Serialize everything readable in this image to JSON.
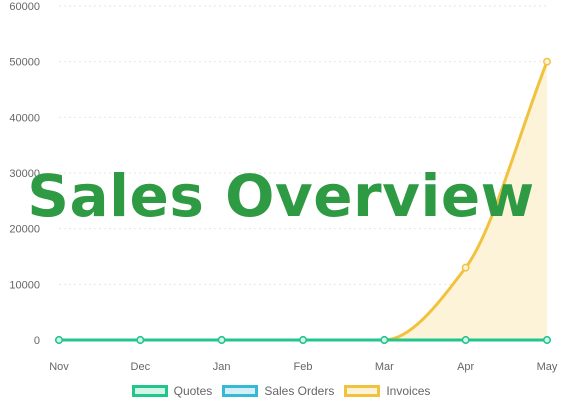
{
  "title": "Sales Overview",
  "chart_data": {
    "type": "line",
    "categories": [
      "Nov",
      "Dec",
      "Jan",
      "Feb",
      "Mar",
      "Apr",
      "May"
    ],
    "series": [
      {
        "name": "Quotes",
        "values": [
          0,
          0,
          0,
          0,
          0,
          0,
          0
        ],
        "color": "#22c58b",
        "fill": "#d2f5e8"
      },
      {
        "name": "Sales Orders",
        "values": [
          0,
          0,
          0,
          0,
          0,
          0,
          0
        ],
        "color": "#36b9d4",
        "fill": "#d4f0f7"
      },
      {
        "name": "Invoices",
        "values": [
          0,
          0,
          0,
          0,
          0,
          13000,
          50000
        ],
        "color": "#f1c23e",
        "fill": "#fdf3d9"
      }
    ],
    "y_ticks": [
      0,
      10000,
      20000,
      30000,
      40000,
      50000,
      60000
    ],
    "ylim": [
      0,
      60000
    ],
    "xlabel": "",
    "ylabel": "",
    "grid": true,
    "legend_position": "bottom"
  }
}
